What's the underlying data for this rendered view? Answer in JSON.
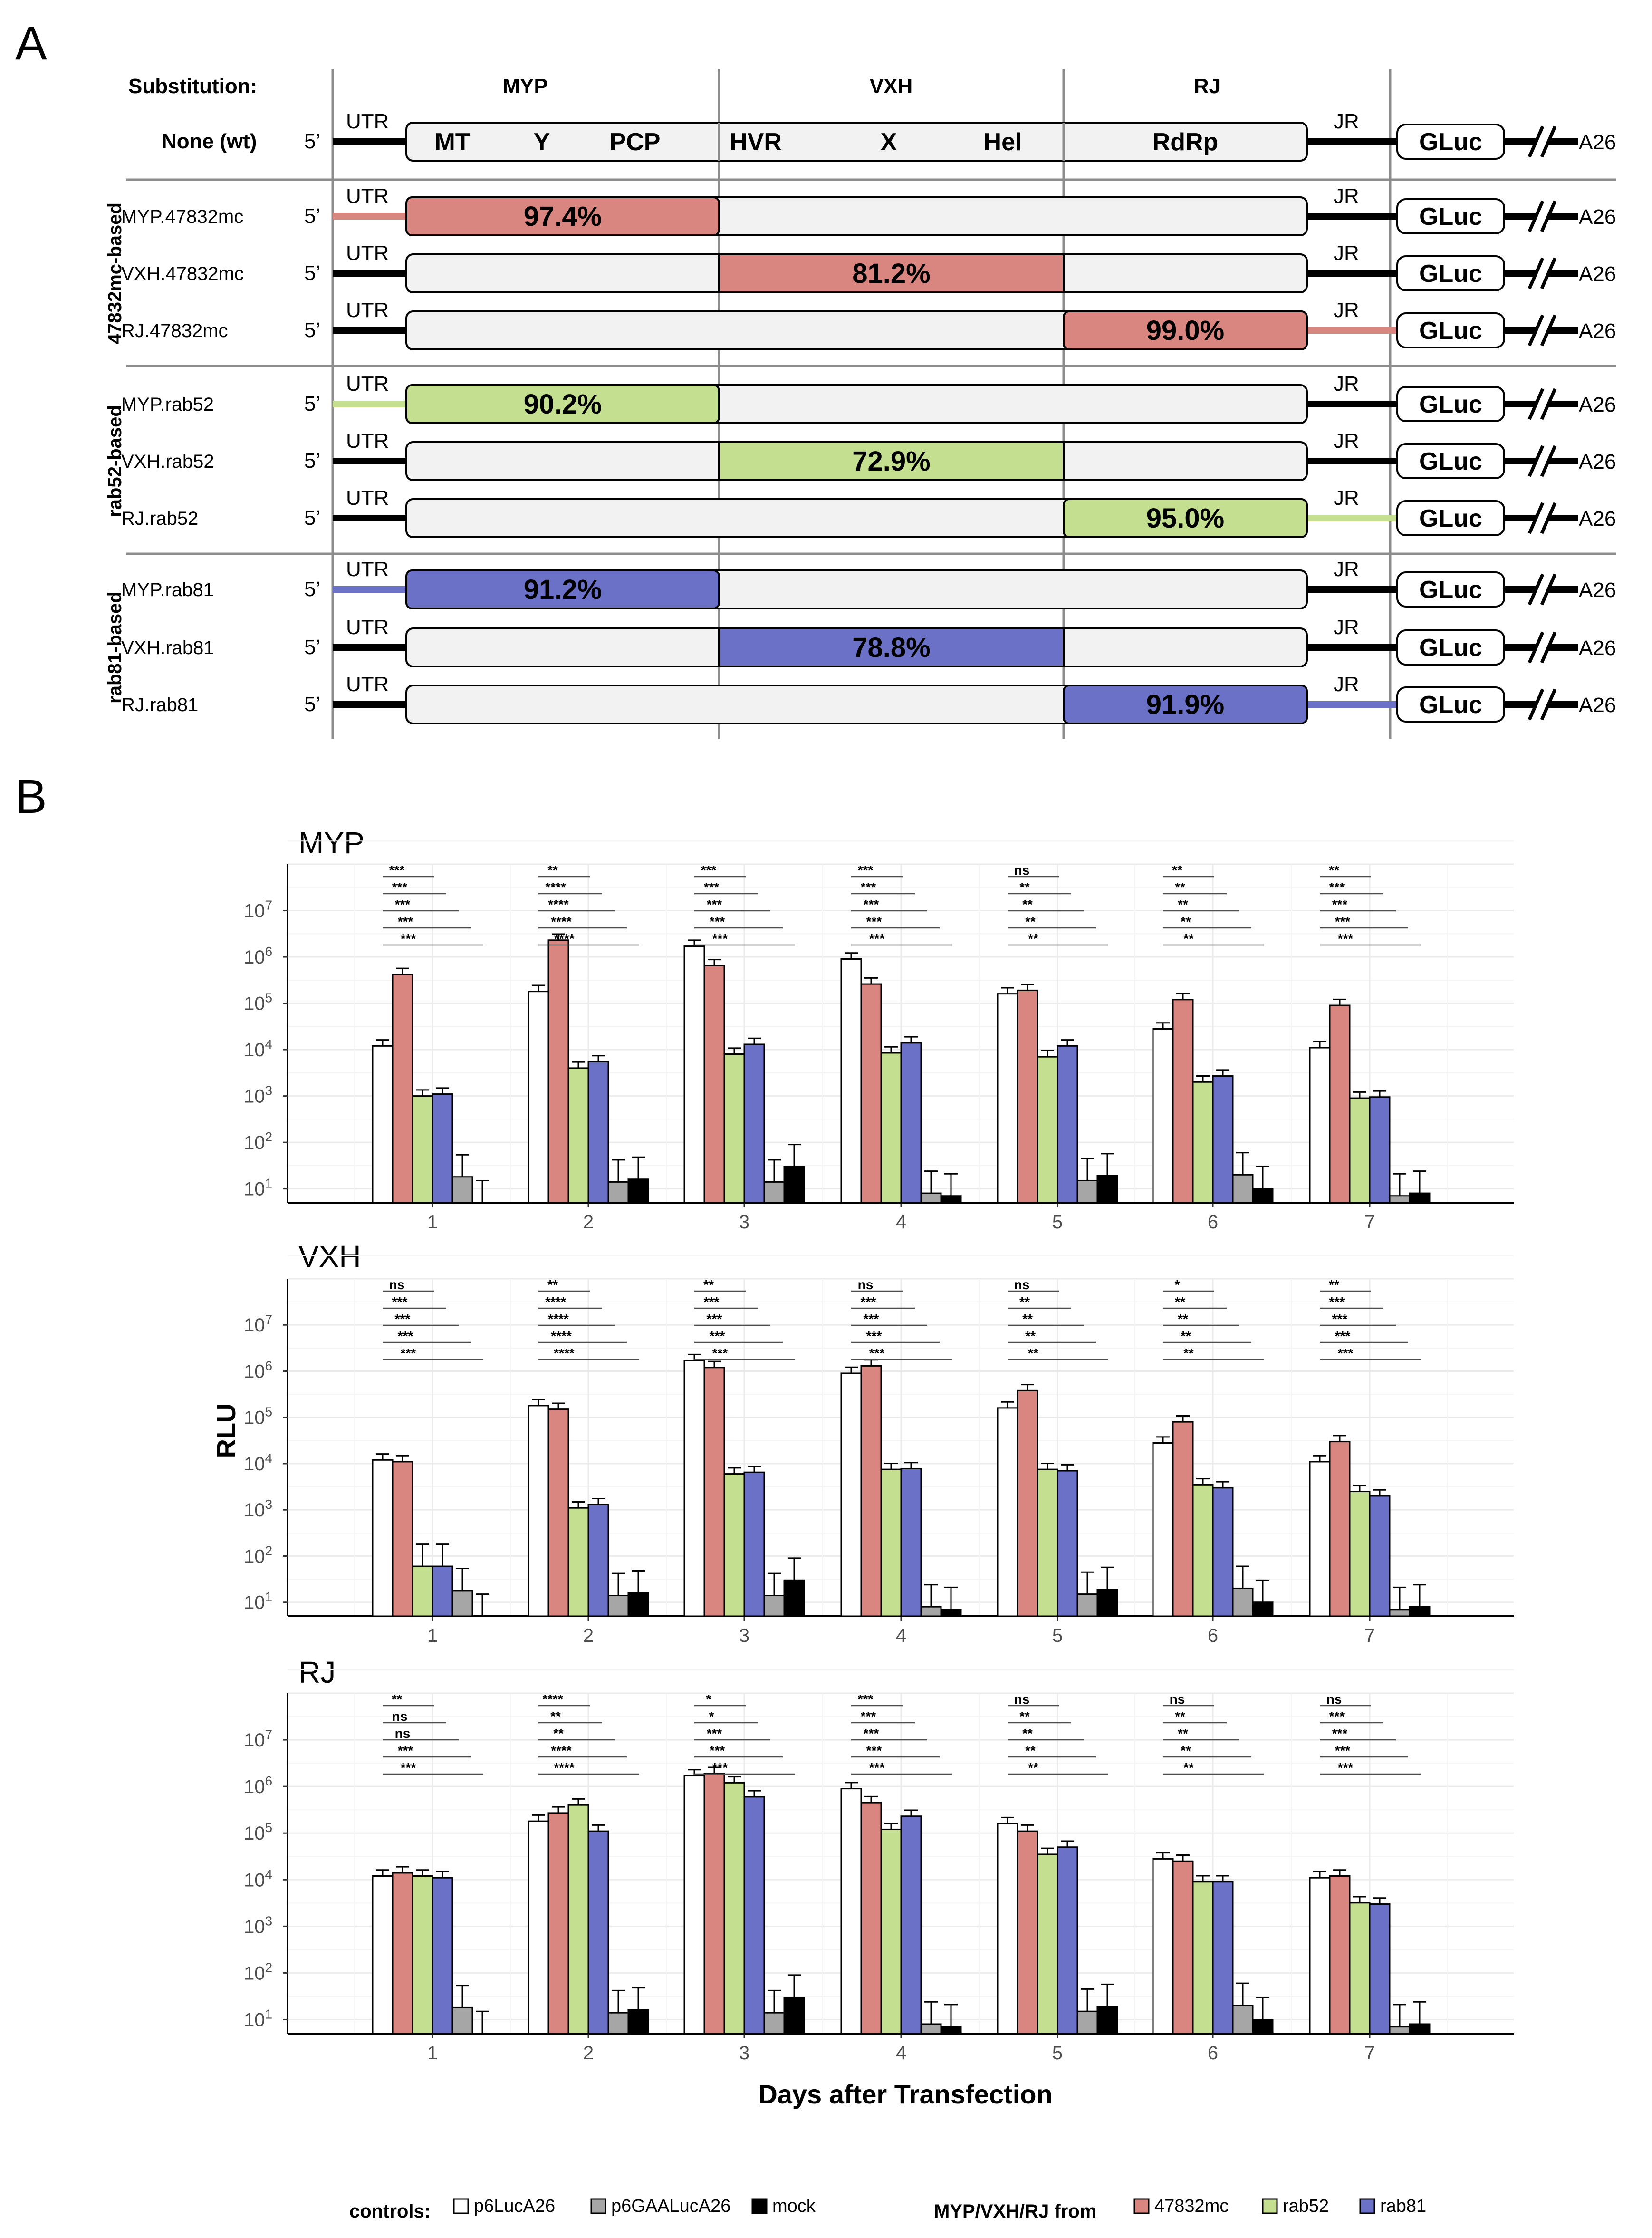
{
  "panel_a": {
    "letter": "A",
    "substitution_label": "Substitution:",
    "region_headers": [
      "MYP",
      "VXH",
      "RJ"
    ],
    "wt_label": "None (wt)",
    "groups": [
      "47832mc-based",
      "rab52-based",
      "rab81-based"
    ],
    "five_prime": "5’",
    "utr": "UTR",
    "jr": "JR",
    "gluc": "GLuc",
    "a26": "A26",
    "domains": [
      "MT",
      "Y",
      "PCP",
      "HVR",
      "X",
      "Hel",
      "RdRp"
    ],
    "rows": [
      {
        "label": "MYP.47832mc",
        "region": "MYP",
        "pct": "97.4%",
        "color": "#d98680"
      },
      {
        "label": "VXH.47832mc",
        "region": "VXH",
        "pct": "81.2%",
        "color": "#d98680"
      },
      {
        "label": "RJ.47832mc",
        "region": "RJ",
        "pct": "99.0%",
        "color": "#d98680"
      },
      {
        "label": "MYP.rab52",
        "region": "MYP",
        "pct": "90.2%",
        "color": "#c3df8f"
      },
      {
        "label": "VXH.rab52",
        "region": "VXH",
        "pct": "72.9%",
        "color": "#c3df8f"
      },
      {
        "label": "RJ.rab52",
        "region": "RJ",
        "pct": "95.0%",
        "color": "#c3df8f"
      },
      {
        "label": "MYP.rab81",
        "region": "MYP",
        "pct": "91.2%",
        "color": "#6a71c6"
      },
      {
        "label": "VXH.rab81",
        "region": "VXH",
        "pct": "78.8%",
        "color": "#6a71c6"
      },
      {
        "label": "RJ.rab81",
        "region": "RJ",
        "pct": "91.9%",
        "color": "#6a71c6"
      }
    ]
  },
  "panel_b": {
    "letter": "B",
    "ylabel": "RLU",
    "xlabel": "Days after Transfection"
  },
  "chart_data": [
    {
      "type": "bar",
      "title": "MYP",
      "xlabel": "Days after Transfection",
      "ylabel": "RLU",
      "yscale": "log10",
      "ylim": [
        5,
        100000000
      ],
      "categories": [
        "1",
        "2",
        "3",
        "4",
        "5",
        "6",
        "7"
      ],
      "series": [
        {
          "name": "p6LucA26",
          "values": [
            12000,
            180000,
            1700000,
            900000,
            160000,
            28000,
            11000
          ]
        },
        {
          "name": "47832mc",
          "values": [
            420000,
            2300000,
            650000,
            260000,
            190000,
            120000,
            90000
          ]
        },
        {
          "name": "rab52",
          "values": [
            1000,
            4000,
            8000,
            8500,
            7000,
            2000,
            900
          ]
        },
        {
          "name": "rab81",
          "values": [
            1100,
            5500,
            13000,
            14000,
            12000,
            2700,
            950
          ]
        },
        {
          "name": "p6GAALucA26",
          "values": [
            18,
            14,
            14,
            8,
            15,
            20,
            7
          ]
        },
        {
          "name": "mock",
          "values": [
            5,
            16,
            30,
            7,
            19,
            10,
            8
          ]
        }
      ],
      "significance": [
        [
          "***",
          "***",
          "***",
          "***",
          "***"
        ],
        [
          "**",
          "****",
          "****",
          "****",
          "****"
        ],
        [
          "***",
          "***",
          "***",
          "***",
          "***"
        ],
        [
          "***",
          "***",
          "***",
          "***",
          "***"
        ],
        [
          "ns",
          "**",
          "**",
          "**",
          "**"
        ],
        [
          "**",
          "**",
          "**",
          "**",
          "**"
        ],
        [
          "**",
          "***",
          "***",
          "***",
          "***"
        ]
      ]
    },
    {
      "type": "bar",
      "title": "VXH",
      "xlabel": "Days after Transfection",
      "ylabel": "RLU",
      "yscale": "log10",
      "ylim": [
        5,
        100000000
      ],
      "categories": [
        "1",
        "2",
        "3",
        "4",
        "5",
        "6",
        "7"
      ],
      "series": [
        {
          "name": "p6LucA26",
          "values": [
            12000,
            180000,
            1700000,
            900000,
            160000,
            28000,
            11000
          ]
        },
        {
          "name": "47832mc",
          "values": [
            11000,
            150000,
            1200000,
            1300000,
            380000,
            80000,
            30000
          ]
        },
        {
          "name": "rab52",
          "values": [
            60,
            1100,
            6000,
            7500,
            7500,
            3500,
            2500
          ]
        },
        {
          "name": "rab81",
          "values": [
            60,
            1300,
            6500,
            7800,
            7000,
            3000,
            2000
          ]
        },
        {
          "name": "p6GAALucA26",
          "values": [
            18,
            14,
            14,
            8,
            15,
            20,
            7
          ]
        },
        {
          "name": "mock",
          "values": [
            5,
            16,
            30,
            7,
            19,
            10,
            8
          ]
        }
      ],
      "significance": [
        [
          "ns",
          "***",
          "***",
          "***",
          "***"
        ],
        [
          "**",
          "****",
          "****",
          "****",
          "****"
        ],
        [
          "**",
          "***",
          "***",
          "***",
          "***"
        ],
        [
          "ns",
          "***",
          "***",
          "***",
          "***"
        ],
        [
          "ns",
          "**",
          "**",
          "**",
          "**"
        ],
        [
          "*",
          "**",
          "**",
          "**",
          "**"
        ],
        [
          "**",
          "***",
          "***",
          "***",
          "***"
        ]
      ]
    },
    {
      "type": "bar",
      "title": "RJ",
      "xlabel": "Days after Transfection",
      "ylabel": "RLU",
      "yscale": "log10",
      "ylim": [
        5,
        100000000
      ],
      "categories": [
        "1",
        "2",
        "3",
        "4",
        "5",
        "6",
        "7"
      ],
      "series": [
        {
          "name": "p6LucA26",
          "values": [
            12000,
            180000,
            1700000,
            900000,
            160000,
            28000,
            11000
          ]
        },
        {
          "name": "47832mc",
          "values": [
            14000,
            270000,
            1900000,
            450000,
            110000,
            25000,
            12000
          ]
        },
        {
          "name": "rab52",
          "values": [
            12000,
            400000,
            1200000,
            120000,
            35000,
            9000,
            3200
          ]
        },
        {
          "name": "rab81",
          "values": [
            11000,
            110000,
            600000,
            230000,
            50000,
            9000,
            3000
          ]
        },
        {
          "name": "p6GAALucA26",
          "values": [
            18,
            14,
            14,
            8,
            15,
            20,
            7
          ]
        },
        {
          "name": "mock",
          "values": [
            5,
            16,
            30,
            7,
            19,
            10,
            8
          ]
        }
      ],
      "significance": [
        [
          "**",
          "ns",
          "ns",
          "***",
          "***"
        ],
        [
          "****",
          "**",
          "**",
          "****",
          "****"
        ],
        [
          "*",
          "*",
          "***",
          "***",
          "***"
        ],
        [
          "***",
          "***",
          "***",
          "***",
          "***"
        ],
        [
          "ns",
          "**",
          "**",
          "**",
          "**"
        ],
        [
          "ns",
          "**",
          "**",
          "**",
          "**"
        ],
        [
          "ns",
          "***",
          "***",
          "***",
          "***"
        ]
      ]
    }
  ],
  "legend": {
    "controls_title": "controls:",
    "controls": [
      {
        "name": "p6LucA26",
        "color": "#ffffff"
      },
      {
        "name": "p6GAALucA26",
        "color": "#a6a6a6"
      },
      {
        "name": "mock",
        "color": "#000000"
      }
    ],
    "source_title": "MYP/VXH/RJ from",
    "sources": [
      {
        "name": "47832mc",
        "color": "#d98680"
      },
      {
        "name": "rab52",
        "color": "#c3df8f"
      },
      {
        "name": "rab81",
        "color": "#6a71c6"
      }
    ]
  }
}
